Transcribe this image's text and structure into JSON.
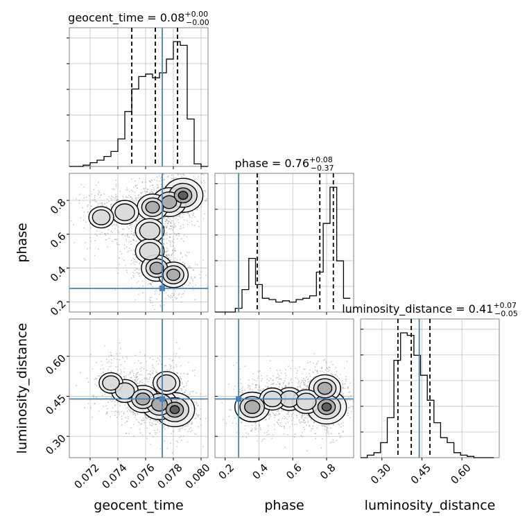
{
  "chart_data": {
    "type": "corner",
    "parameters": [
      "geocent_time",
      "phase",
      "luminosity_distance"
    ],
    "colors": {
      "truth": "#4682b4",
      "hist": "#000000",
      "quantile": "#000000",
      "grid": "#c0c0c0",
      "points": "#808080"
    },
    "truths": {
      "geocent_time": 0.0772,
      "phase": 0.28,
      "luminosity_distance": 0.44
    },
    "titles": {
      "geocent_time": {
        "text": "geocent_time = 0.08",
        "sup": "+0.00",
        "sub": "−0.00"
      },
      "phase": {
        "text": "phase = 0.76",
        "sup": "+0.08",
        "sub": "−0.37"
      },
      "luminosity_distance": {
        "text": "luminosity_distance = 0.41",
        "sup": "+0.07",
        "sub": "−0.05"
      }
    },
    "quantiles": {
      "geocent_time": [
        0.075,
        0.0767,
        0.0783
      ],
      "phase": [
        0.39,
        0.76,
        0.84
      ],
      "luminosity_distance": [
        0.36,
        0.41,
        0.48
      ]
    },
    "ranges": {
      "geocent_time": [
        0.0705,
        0.0805
      ],
      "phase": [
        0.14,
        0.96
      ],
      "luminosity_distance": [
        0.22,
        0.74
      ]
    },
    "ticks": {
      "geocent_time": [
        "0.072",
        "0.074",
        "0.076",
        "0.078",
        "0.080"
      ],
      "phase": [
        "0.2",
        "0.4",
        "0.6",
        "0.8"
      ],
      "phase_y": [
        "0.2",
        "0.4",
        "0.6",
        "0.8"
      ],
      "luminosity_distance": [
        "0.30",
        "0.45",
        "0.60"
      ]
    },
    "axis_labels": {
      "x": [
        "geocent_time",
        "phase",
        "luminosity_distance"
      ],
      "y": [
        "phase",
        "luminosity_distance"
      ]
    },
    "histograms": {
      "geocent_time": {
        "edges": [
          0.0705,
          0.071,
          0.0715,
          0.072,
          0.0725,
          0.073,
          0.0735,
          0.074,
          0.0745,
          0.075,
          0.0755,
          0.076,
          0.0765,
          0.077,
          0.0775,
          0.078,
          0.0785,
          0.079,
          0.0795,
          0.08,
          0.0805
        ],
        "counts": [
          0,
          0,
          1,
          3,
          5,
          8,
          12,
          22,
          44,
          62,
          72,
          74,
          71,
          75,
          86,
          100,
          97,
          38,
          2,
          0
        ]
      },
      "phase": {
        "edges": [
          0.14,
          0.18,
          0.22,
          0.26,
          0.3,
          0.34,
          0.38,
          0.42,
          0.46,
          0.5,
          0.54,
          0.58,
          0.62,
          0.66,
          0.7,
          0.74,
          0.78,
          0.82,
          0.86,
          0.9,
          0.94
        ],
        "counts": [
          0,
          0,
          0,
          3,
          18,
          43,
          22,
          11,
          10,
          8,
          9,
          8,
          10,
          11,
          13,
          32,
          71,
          100,
          41,
          11
        ]
      },
      "luminosity_distance": {
        "edges": [
          0.22,
          0.245,
          0.27,
          0.295,
          0.32,
          0.345,
          0.37,
          0.395,
          0.42,
          0.445,
          0.47,
          0.495,
          0.52,
          0.545,
          0.57,
          0.595,
          0.62,
          0.645,
          0.67,
          0.695,
          0.72
        ],
        "counts": [
          0,
          2,
          4,
          12,
          32,
          78,
          100,
          98,
          82,
          66,
          46,
          28,
          16,
          12,
          4,
          2,
          1,
          0,
          0,
          0
        ]
      }
    },
    "density": {
      "phase|geocent_time": [
        {
          "x": 0.0787,
          "y": 0.83,
          "w": 1.0
        },
        {
          "x": 0.0777,
          "y": 0.79,
          "w": 0.7
        },
        {
          "x": 0.0765,
          "y": 0.76,
          "w": 0.55
        },
        {
          "x": 0.0745,
          "y": 0.73,
          "w": 0.4
        },
        {
          "x": 0.0728,
          "y": 0.7,
          "w": 0.25
        },
        {
          "x": 0.0763,
          "y": 0.62,
          "w": 0.45
        },
        {
          "x": 0.0763,
          "y": 0.5,
          "w": 0.45
        },
        {
          "x": 0.0768,
          "y": 0.4,
          "w": 0.55
        },
        {
          "x": 0.078,
          "y": 0.36,
          "w": 0.5
        }
      ],
      "luminosity_distance|geocent_time": [
        {
          "x": 0.0781,
          "y": 0.4,
          "w": 1.0
        },
        {
          "x": 0.077,
          "y": 0.42,
          "w": 0.8
        },
        {
          "x": 0.0758,
          "y": 0.44,
          "w": 0.6
        },
        {
          "x": 0.0745,
          "y": 0.47,
          "w": 0.35
        },
        {
          "x": 0.0735,
          "y": 0.5,
          "w": 0.2
        },
        {
          "x": 0.0775,
          "y": 0.5,
          "w": 0.35
        }
      ],
      "luminosity_distance|phase": [
        {
          "x": 0.8,
          "y": 0.41,
          "w": 1.0
        },
        {
          "x": 0.79,
          "y": 0.48,
          "w": 0.6
        },
        {
          "x": 0.36,
          "y": 0.41,
          "w": 0.75
        },
        {
          "x": 0.58,
          "y": 0.44,
          "w": 0.35
        },
        {
          "x": 0.68,
          "y": 0.43,
          "w": 0.4
        },
        {
          "x": 0.48,
          "y": 0.44,
          "w": 0.3
        }
      ]
    }
  }
}
